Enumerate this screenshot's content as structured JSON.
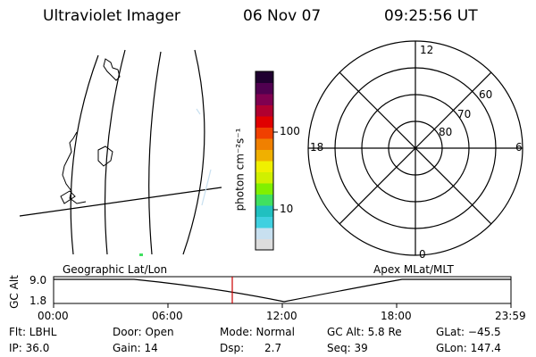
{
  "header": {
    "title": "Ultraviolet Imager",
    "date": "06 Nov 07",
    "time": "09:25:56 UT"
  },
  "colorbar": {
    "unit_label": "photon cm⁻²s⁻¹",
    "tick_100": "100",
    "tick_10": "10",
    "colors": [
      "#dddddd",
      "#c8e0f0",
      "#40d0e0",
      "#20c0c0",
      "#40e060",
      "#80f000",
      "#d0f000",
      "#f0f000",
      "#f0b000",
      "#f08000",
      "#f04000",
      "#e00000",
      "#b00030",
      "#800050",
      "#500050",
      "#200030"
    ]
  },
  "polar_plot": {
    "mlt_labels": [
      "12",
      "6",
      "0",
      "18"
    ],
    "lat_labels": [
      "60",
      "70",
      "80"
    ]
  },
  "orbit_panel": {
    "left_label": "Geographic Lat/Lon",
    "right_label": "Apex MLat/MLT",
    "y_axis_label": "GC Alt",
    "y_ticks": [
      "9.0",
      "1.8"
    ],
    "x_ticks": [
      "00:00",
      "06:00",
      "12:00",
      "18:00",
      "23:59"
    ],
    "marker_time": "09:25:56",
    "marker_color": "#cc0000"
  },
  "status": {
    "filter": "Flt: LBHL",
    "door": "Door: Open",
    "mode": "Mode: Normal",
    "gc_alt": "GC Alt: 5.8 Re",
    "glat": "GLat: −45.5",
    "ip": "IP: 36.0",
    "gain": "Gain: 14",
    "dsp_label": "Dsp:",
    "dsp_value": "2.7",
    "seq": "Seq: 39",
    "glon": "GLon: 147.4"
  }
}
